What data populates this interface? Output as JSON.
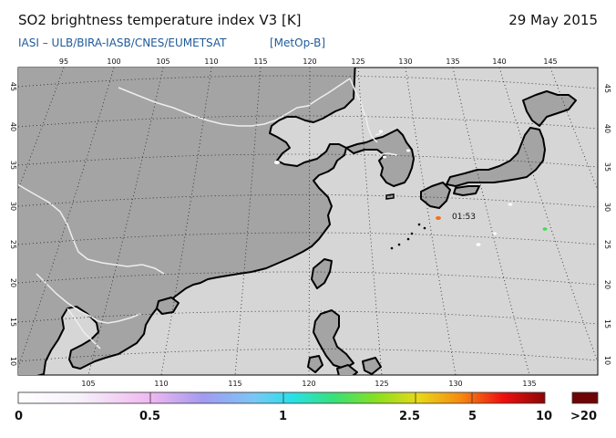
{
  "header": {
    "title": "SO2 brightness temperature index V3 [K]",
    "date": "29 May 2015",
    "instrument_line": "IASI  –  ULB/BIRA-IASB/CNES/EUMETSAT",
    "satellite": "[MetOp-B]"
  },
  "map": {
    "top_lon_ticks": [
      "95",
      "100",
      "105",
      "110",
      "115",
      "120",
      "125",
      "130",
      "135",
      "140",
      "145"
    ],
    "bottom_lon_ticks": [
      "105",
      "110",
      "115",
      "120",
      "125",
      "130",
      "135"
    ],
    "left_lat_ticks": [
      "45",
      "40",
      "35",
      "30",
      "25",
      "20",
      "15",
      "10"
    ],
    "right_lat_ticks": [
      "45",
      "40",
      "35",
      "30",
      "25",
      "20",
      "15",
      "10"
    ],
    "overpass_time": "01:53",
    "colors": {
      "land": "#a4a4a4",
      "sea": "#d6d6d6",
      "coast": "#000000",
      "border": "#eeeeee"
    }
  },
  "colorbar": {
    "labels": [
      "0",
      "0.5",
      "1",
      "2.5",
      "5",
      "10",
      ">20"
    ]
  }
}
